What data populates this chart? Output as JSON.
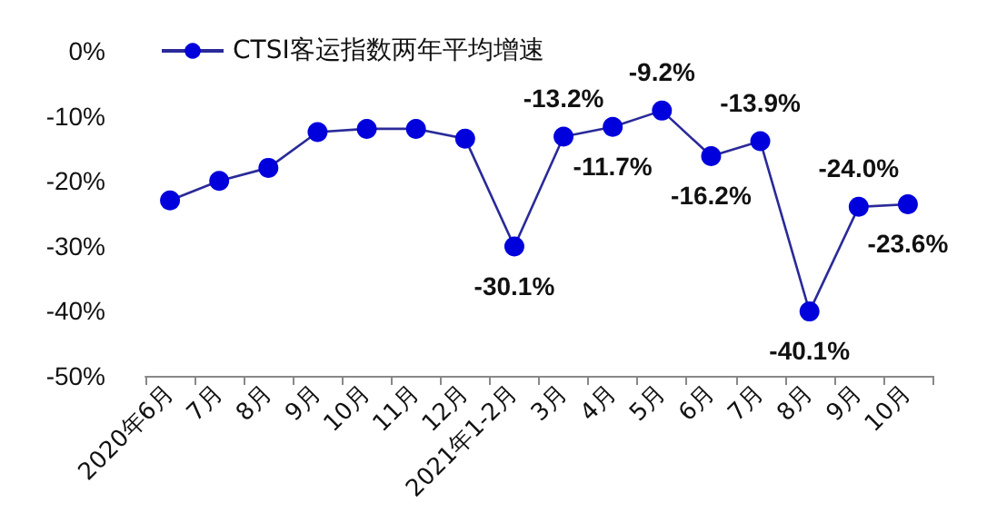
{
  "chart_data": {
    "type": "line",
    "categories": [
      "2020年6月",
      "7月",
      "8月",
      "9月",
      "10月",
      "11月",
      "12月",
      "2021年1-2月",
      "3月",
      "4月",
      "5月",
      "6月",
      "7月",
      "8月",
      "9月",
      "10月"
    ],
    "series": [
      {
        "name": "CTSI客运指数两年平均增速",
        "color": "#0000dd",
        "values": [
          -23,
          -20,
          -18,
          -12.5,
          -12,
          -12,
          -13.5,
          -30.1,
          -13.2,
          -11.7,
          -9.2,
          -16.2,
          -13.9,
          -40.1,
          -24.0,
          -23.6
        ],
        "value_labels": [
          null,
          null,
          null,
          null,
          null,
          null,
          null,
          "-30.1%",
          "-13.2%",
          "-11.7%",
          "-9.2%",
          "-16.2%",
          "-13.9%",
          "-40.1%",
          "-24.0%",
          "-23.6%"
        ]
      }
    ],
    "ylim": [
      -50,
      0
    ],
    "yticks": [
      {
        "value": -50,
        "label": "-50%"
      },
      {
        "value": -40,
        "label": "-40%"
      },
      {
        "value": -30,
        "label": "-30%"
      },
      {
        "value": -20,
        "label": "-20%"
      },
      {
        "value": -10,
        "label": "-10%"
      },
      {
        "value": 0,
        "label": "0%"
      }
    ],
    "grid": false,
    "legend": "top left",
    "marker": "circle",
    "line_style": "solid"
  }
}
